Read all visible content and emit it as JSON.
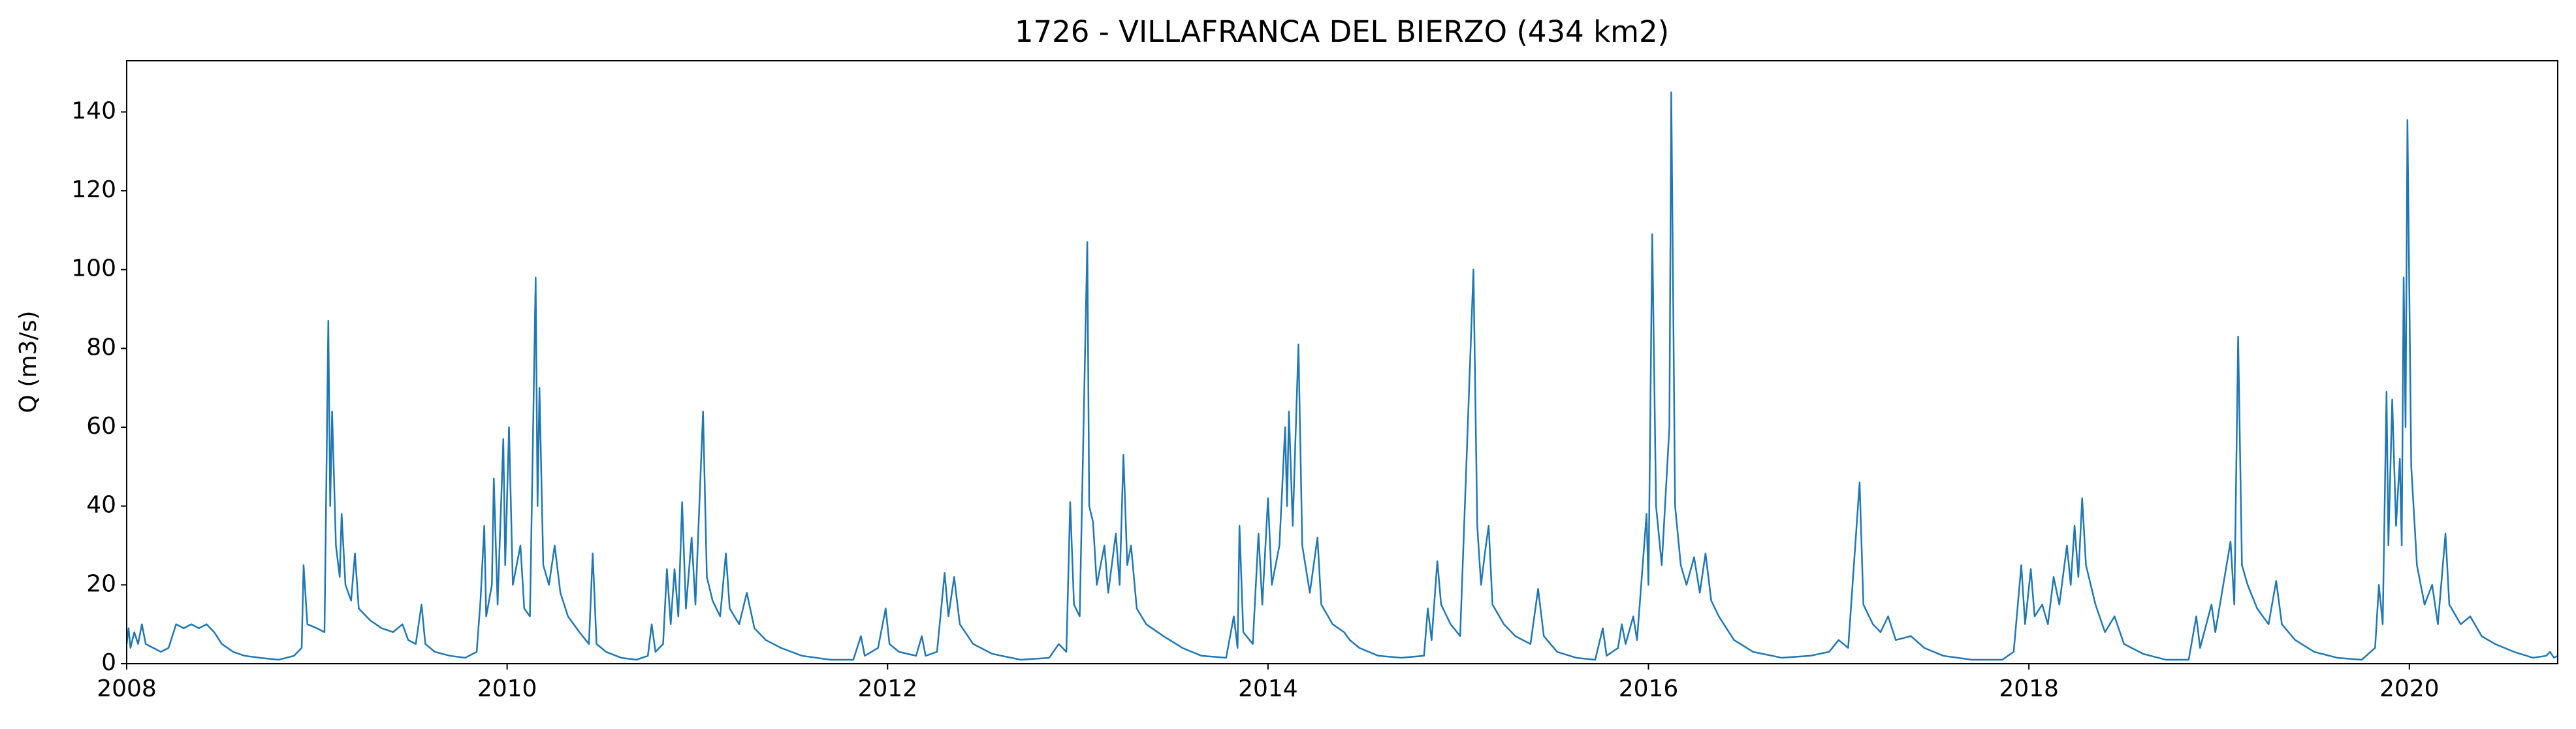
{
  "chart_data": {
    "type": "line",
    "title": "1726 - VILLAFRANCA DEL BIERZO (434 km2)",
    "ylabel": "Q (m3/s)",
    "xlim": [
      2008,
      2020.78
    ],
    "xticks": [
      2008,
      2010,
      2012,
      2014,
      2016,
      2018,
      2020
    ],
    "ylim": [
      0,
      153
    ],
    "yticks": [
      0,
      20,
      40,
      60,
      80,
      100,
      120,
      140
    ],
    "grid": false,
    "series": [
      {
        "name": "Q",
        "color": "#1f77b4",
        "x": [
          2008.0,
          2008.01,
          2008.02,
          2008.04,
          2008.06,
          2008.08,
          2008.1,
          2008.14,
          2008.18,
          2008.22,
          2008.26,
          2008.3,
          2008.34,
          2008.38,
          2008.42,
          2008.46,
          2008.5,
          2008.56,
          2008.62,
          2008.7,
          2008.8,
          2008.88,
          2008.92,
          2008.93,
          2008.95,
          2009.0,
          2009.04,
          2009.06,
          2009.07,
          2009.08,
          2009.1,
          2009.12,
          2009.13,
          2009.15,
          2009.18,
          2009.2,
          2009.22,
          2009.28,
          2009.34,
          2009.4,
          2009.45,
          2009.48,
          2009.52,
          2009.55,
          2009.57,
          2009.62,
          2009.7,
          2009.78,
          2009.84,
          2009.86,
          2009.88,
          2009.89,
          2009.92,
          2009.93,
          2009.95,
          2009.98,
          2009.99,
          2010.01,
          2010.03,
          2010.07,
          2010.09,
          2010.12,
          2010.15,
          2010.16,
          2010.17,
          2010.19,
          2010.22,
          2010.25,
          2010.28,
          2010.32,
          2010.38,
          2010.43,
          2010.45,
          2010.47,
          2010.52,
          2010.6,
          2010.68,
          2010.74,
          2010.76,
          2010.78,
          2010.82,
          2010.84,
          2010.86,
          2010.88,
          2010.9,
          2010.92,
          2010.94,
          2010.97,
          2010.99,
          2011.03,
          2011.05,
          2011.08,
          2011.12,
          2011.15,
          2011.17,
          2011.22,
          2011.26,
          2011.3,
          2011.36,
          2011.44,
          2011.55,
          2011.7,
          2011.82,
          2011.86,
          2011.88,
          2011.95,
          2011.99,
          2012.01,
          2012.06,
          2012.15,
          2012.18,
          2012.2,
          2012.26,
          2012.3,
          2012.32,
          2012.35,
          2012.38,
          2012.45,
          2012.55,
          2012.7,
          2012.85,
          2012.9,
          2012.94,
          2012.96,
          2012.98,
          2013.01,
          2013.05,
          2013.06,
          2013.08,
          2013.1,
          2013.14,
          2013.16,
          2013.2,
          2013.22,
          2013.24,
          2013.26,
          2013.28,
          2013.31,
          2013.36,
          2013.45,
          2013.55,
          2013.65,
          2013.78,
          2013.82,
          2013.84,
          2013.85,
          2013.87,
          2013.92,
          2013.95,
          2013.97,
          2014.0,
          2014.02,
          2014.06,
          2014.09,
          2014.1,
          2014.11,
          2014.13,
          2014.16,
          2014.18,
          2014.22,
          2014.26,
          2014.28,
          2014.34,
          2014.4,
          2014.43,
          2014.48,
          2014.58,
          2014.7,
          2014.82,
          2014.84,
          2014.86,
          2014.89,
          2014.91,
          2014.96,
          2015.01,
          2015.08,
          2015.1,
          2015.12,
          2015.14,
          2015.16,
          2015.18,
          2015.24,
          2015.3,
          2015.38,
          2015.42,
          2015.45,
          2015.52,
          2015.62,
          2015.72,
          2015.76,
          2015.78,
          2015.84,
          2015.86,
          2015.88,
          2015.92,
          2015.94,
          2015.99,
          2016.0,
          2016.02,
          2016.04,
          2016.07,
          2016.11,
          2016.12,
          2016.14,
          2016.17,
          2016.2,
          2016.24,
          2016.27,
          2016.3,
          2016.33,
          2016.37,
          2016.45,
          2016.55,
          2016.7,
          2016.85,
          2016.95,
          2017.0,
          2017.05,
          2017.11,
          2017.13,
          2017.18,
          2017.22,
          2017.26,
          2017.3,
          2017.38,
          2017.45,
          2017.55,
          2017.7,
          2017.86,
          2017.92,
          2017.96,
          2017.98,
          2018.01,
          2018.03,
          2018.07,
          2018.1,
          2018.13,
          2018.16,
          2018.2,
          2018.22,
          2018.24,
          2018.26,
          2018.28,
          2018.3,
          2018.35,
          2018.4,
          2018.45,
          2018.5,
          2018.6,
          2018.72,
          2018.84,
          2018.88,
          2018.9,
          2018.96,
          2018.98,
          2019.06,
          2019.08,
          2019.1,
          2019.12,
          2019.15,
          2019.2,
          2019.26,
          2019.3,
          2019.33,
          2019.4,
          2019.5,
          2019.62,
          2019.75,
          2019.82,
          2019.84,
          2019.86,
          2019.88,
          2019.89,
          2019.91,
          2019.93,
          2019.95,
          2019.96,
          2019.97,
          2019.98,
          2019.99,
          2020.01,
          2020.04,
          2020.08,
          2020.12,
          2020.15,
          2020.19,
          2020.21,
          2020.27,
          2020.32,
          2020.38,
          2020.45,
          2020.55,
          2020.65,
          2020.72,
          2020.74,
          2020.76,
          2020.78
        ],
        "values": [
          5,
          9,
          4,
          8,
          5,
          10,
          5,
          4,
          3,
          4,
          10,
          9,
          10,
          9,
          10,
          8,
          5,
          3,
          2,
          1.5,
          1,
          2,
          4,
          25,
          10,
          9,
          8,
          87,
          40,
          64,
          30,
          22,
          38,
          20,
          16,
          28,
          14,
          11,
          9,
          8,
          10,
          6,
          5,
          15,
          5,
          3,
          2,
          1.5,
          3,
          16,
          35,
          12,
          20,
          47,
          15,
          57,
          25,
          60,
          20,
          30,
          14,
          12,
          98,
          40,
          70,
          25,
          20,
          30,
          18,
          12,
          8,
          5,
          28,
          5,
          3,
          1.5,
          1,
          2,
          10,
          3,
          5,
          24,
          10,
          24,
          12,
          41,
          14,
          32,
          15,
          64,
          22,
          16,
          12,
          28,
          14,
          10,
          18,
          9,
          6,
          4,
          2,
          1,
          1,
          7,
          2,
          4,
          14,
          5,
          3,
          2,
          7,
          2,
          3,
          23,
          12,
          22,
          10,
          5,
          2.5,
          1,
          1.5,
          5,
          3,
          41,
          15,
          12,
          107,
          40,
          36,
          20,
          30,
          18,
          33,
          20,
          53,
          25,
          30,
          14,
          10,
          7,
          4,
          2,
          1.5,
          12,
          4,
          35,
          8,
          5,
          33,
          15,
          42,
          20,
          30,
          60,
          40,
          64,
          35,
          81,
          30,
          18,
          32,
          15,
          10,
          8,
          6,
          4,
          2,
          1.5,
          2,
          14,
          6,
          26,
          15,
          10,
          7,
          100,
          35,
          20,
          28,
          35,
          15,
          10,
          7,
          5,
          19,
          7,
          3,
          1.5,
          1,
          9,
          2,
          4,
          10,
          5,
          12,
          6,
          38,
          20,
          109,
          40,
          25,
          60,
          145,
          40,
          25,
          20,
          27,
          18,
          28,
          16,
          12,
          6,
          3,
          1.5,
          2,
          3,
          6,
          4,
          46,
          15,
          10,
          8,
          12,
          6,
          7,
          4,
          2,
          1,
          1,
          3,
          25,
          10,
          24,
          12,
          15,
          10,
          22,
          15,
          30,
          20,
          35,
          22,
          42,
          25,
          15,
          8,
          12,
          5,
          2.5,
          1,
          1,
          12,
          4,
          15,
          8,
          31,
          15,
          83,
          25,
          20,
          14,
          10,
          21,
          10,
          6,
          3,
          1.5,
          1,
          4,
          20,
          10,
          69,
          30,
          67,
          35,
          52,
          30,
          98,
          60,
          138,
          50,
          25,
          15,
          20,
          10,
          33,
          15,
          10,
          12,
          7,
          5,
          3,
          1.5,
          2,
          3,
          1.5,
          2
        ]
      }
    ]
  }
}
